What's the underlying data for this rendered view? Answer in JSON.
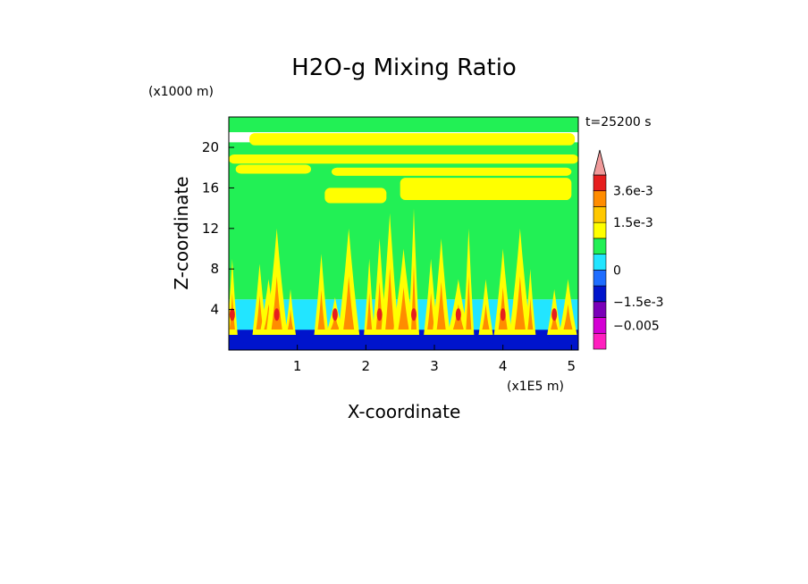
{
  "chart_data": {
    "type": "heatmap",
    "title": "H2O-g Mixing Ratio",
    "xlabel": "X-coordinate",
    "ylabel": "Z-coordinate",
    "x_unit_label": "(x1E5 m)",
    "y_unit_label": "(x1000 m)",
    "time_label": "t=25200 s",
    "xlim": [
      0,
      5.1
    ],
    "ylim": [
      0,
      23
    ],
    "x_ticks": [
      1,
      2,
      3,
      4,
      5
    ],
    "x_tick_labels": [
      "1",
      "2",
      "3",
      "4",
      "5"
    ],
    "y_ticks": [
      4,
      8,
      12,
      16,
      20
    ],
    "y_tick_labels": [
      "4",
      "8",
      "12",
      "16",
      "20"
    ],
    "colorbar": {
      "levels": [
        -0.008,
        -0.005,
        -0.003,
        -0.0015,
        -0.0008,
        0,
        0.0004,
        0.0008,
        0.0015,
        0.0025,
        0.0036
      ],
      "colors": [
        "#ff1fbf",
        "#d400d4",
        "#7a00b8",
        "#0014cc",
        "#1e6dff",
        "#22e5ff",
        "#22f055",
        "#ffff00",
        "#ffc800",
        "#ff8c00",
        "#e61e1e",
        "#f09a9a"
      ],
      "labels": [
        {
          "value": 0.0036,
          "text": "3.6e-3"
        },
        {
          "value": 0.0015,
          "text": "1.5e-3"
        },
        {
          "value": 0,
          "text": "0"
        },
        {
          "value": -0.0015,
          "text": "−1.5e-3"
        },
        {
          "value": -0.005,
          "text": "−0.005"
        }
      ]
    },
    "grid": false,
    "legend_placement": "right"
  }
}
